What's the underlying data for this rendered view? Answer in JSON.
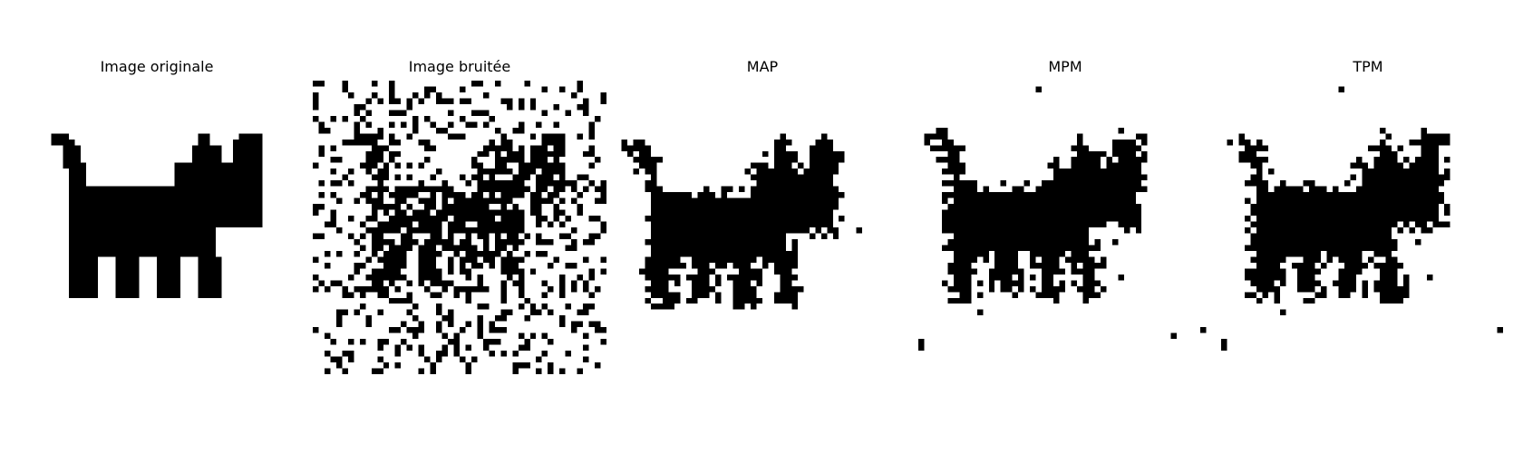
{
  "panels": [
    {
      "id": "original",
      "title": "Image originale"
    },
    {
      "id": "noisy",
      "title": "Image bruitée"
    },
    {
      "id": "map",
      "title": "MAP"
    },
    {
      "id": "mpm",
      "title": "MPM"
    },
    {
      "id": "tpm",
      "title": "TPM"
    }
  ],
  "colors": {
    "foreground": "#000000",
    "background": "#ffffff"
  },
  "image_grid": 50
}
